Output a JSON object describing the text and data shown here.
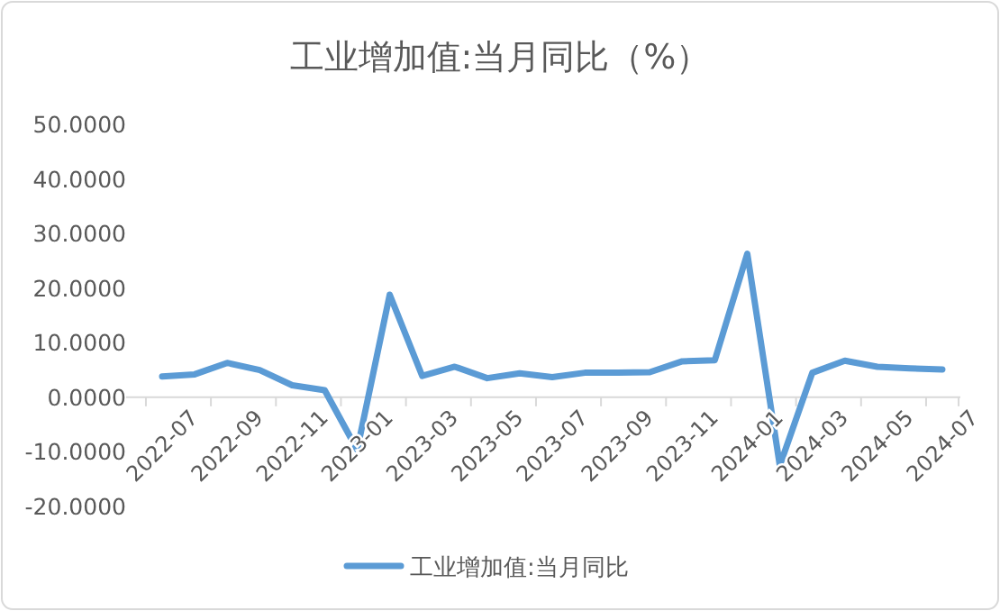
{
  "chart_data": {
    "type": "line",
    "title": "工业增加值:当月同比（%）",
    "categories": [
      "2022-07",
      null,
      "2022-09",
      null,
      "2022-11",
      null,
      "2023-01",
      null,
      "2023-03",
      null,
      "2023-05",
      null,
      "2023-07",
      null,
      "2023-09",
      null,
      "2023-11",
      null,
      "2024-01",
      null,
      "2024-03",
      null,
      "2024-05",
      null,
      "2024-07"
    ],
    "series": [
      {
        "name": "工业增加值:当月同比",
        "color": "#5b9bd5",
        "values": [
          3.8,
          4.2,
          6.3,
          5.0,
          2.2,
          1.3,
          -9.6,
          18.8,
          3.9,
          5.6,
          3.5,
          4.4,
          3.7,
          4.5,
          4.5,
          4.6,
          6.6,
          6.8,
          26.3,
          -12.5,
          4.5,
          6.7,
          5.6,
          5.3,
          5.1
        ]
      }
    ],
    "ylim": [
      -20,
      50
    ],
    "yticks": [
      {
        "value": -20,
        "label": "-20.0000"
      },
      {
        "value": -10,
        "label": "-10.0000"
      },
      {
        "value": 0,
        "label": "0.0000"
      },
      {
        "value": 10,
        "label": "10.0000"
      },
      {
        "value": 20,
        "label": "20.0000"
      },
      {
        "value": 30,
        "label": "30.0000"
      },
      {
        "value": 40,
        "label": "40.0000"
      },
      {
        "value": 50,
        "label": "50.0000"
      }
    ],
    "legend": "bottom",
    "marker": "none",
    "line_style": "solid"
  }
}
